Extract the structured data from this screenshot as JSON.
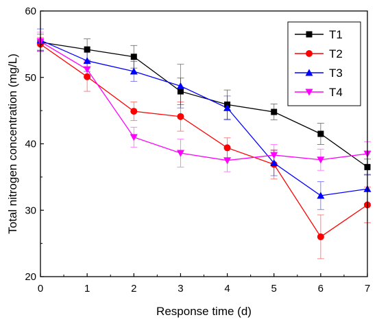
{
  "chart_data": {
    "type": "line",
    "xlabel": "Response time (d)",
    "ylabel": "Total nitrogen concentration (mg/L)",
    "xlim": [
      0,
      7
    ],
    "ylim": [
      20,
      60
    ],
    "x_ticks": [
      "0",
      "1",
      "2",
      "3",
      "4",
      "5",
      "6",
      "7"
    ],
    "y_ticks": [
      "20",
      "30",
      "40",
      "50",
      "60"
    ],
    "grid": false,
    "legend_position": "top-right",
    "x": [
      0,
      1,
      2,
      3,
      4,
      5,
      6,
      7
    ],
    "series": [
      {
        "name": "T1",
        "color": "#000000",
        "marker": "square",
        "values": [
          55.3,
          54.2,
          53.1,
          47.9,
          45.9,
          44.8,
          41.5,
          36.5
        ],
        "errors": [
          1.2,
          1.6,
          1.7,
          2.0,
          2.2,
          1.2,
          1.6,
          1.2
        ]
      },
      {
        "name": "T2",
        "color": "#ff0000",
        "marker": "circle",
        "values": [
          55.0,
          50.1,
          44.9,
          44.1,
          39.4,
          36.9,
          26.0,
          30.8
        ],
        "errors": [
          1.0,
          2.2,
          1.4,
          2.2,
          1.5,
          2.2,
          3.3,
          2.7
        ]
      },
      {
        "name": "T3",
        "color": "#0000ff",
        "marker": "triangle-up",
        "values": [
          55.6,
          52.5,
          50.9,
          48.7,
          45.4,
          37.1,
          32.2,
          33.2
        ],
        "errors": [
          1.7,
          1.6,
          1.5,
          3.3,
          1.8,
          1.9,
          2.1,
          2.2
        ]
      },
      {
        "name": "T4",
        "color": "#ff00ff",
        "marker": "triangle-down",
        "values": [
          55.4,
          51.2,
          41.0,
          38.6,
          37.5,
          38.3,
          37.6,
          38.5
        ],
        "errors": [
          1.4,
          1.3,
          1.5,
          2.1,
          1.7,
          1.6,
          1.6,
          1.8
        ]
      }
    ]
  }
}
